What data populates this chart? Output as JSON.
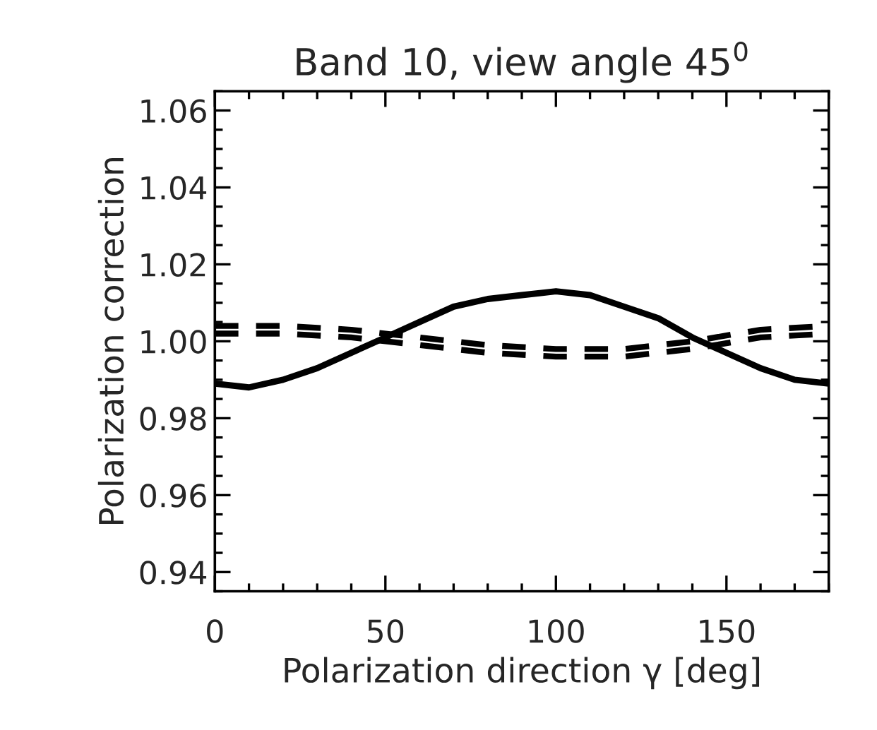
{
  "chart_data": {
    "type": "line",
    "title": "Band 10, view angle 45$^{0}$",
    "xlabel": "Polarization direction γ [deg]",
    "ylabel": "Polarization correction",
    "xlim": [
      0,
      180
    ],
    "xticks": [
      0,
      50,
      100,
      150
    ],
    "ylim": [
      0.935,
      1.065
    ],
    "yticks": [
      {
        "value": 0.94,
        "label": "0.94"
      },
      {
        "value": 0.96,
        "label": "0.96"
      },
      {
        "value": 0.98,
        "label": "0.98"
      },
      {
        "value": 1.0,
        "label": "1.00"
      },
      {
        "value": 1.02,
        "label": "1.02"
      },
      {
        "value": 1.04,
        "label": "1.04"
      },
      {
        "value": 1.06,
        "label": "1.06"
      }
    ],
    "grid": false,
    "legend": false,
    "marker": "none",
    "series": [
      {
        "color": "#000000",
        "line_style": "solid",
        "x": [
          0,
          10,
          20,
          30,
          40,
          50,
          60,
          70,
          80,
          90,
          100,
          110,
          120,
          130,
          140,
          150,
          160,
          170,
          180
        ],
        "values": [
          0.989,
          0.988,
          0.99,
          0.993,
          0.997,
          1.001,
          1.005,
          1.009,
          1.011,
          1.012,
          1.013,
          1.012,
          1.009,
          1.006,
          1.001,
          0.997,
          0.993,
          0.99,
          0.989
        ]
      },
      {
        "color": "#000000",
        "line_style": "dashed",
        "x": [
          0,
          20,
          40,
          60,
          80,
          100,
          120,
          140,
          160,
          180
        ],
        "values": [
          1.004,
          1.004,
          1.003,
          1.001,
          0.999,
          0.998,
          0.998,
          1.0,
          1.003,
          1.004
        ]
      },
      {
        "color": "#000000",
        "line_style": "dashed",
        "x": [
          0,
          20,
          40,
          60,
          80,
          100,
          120,
          140,
          160,
          180
        ],
        "values": [
          1.002,
          1.002,
          1.001,
          0.999,
          0.997,
          0.996,
          0.996,
          0.998,
          1.001,
          1.002
        ]
      }
    ]
  }
}
